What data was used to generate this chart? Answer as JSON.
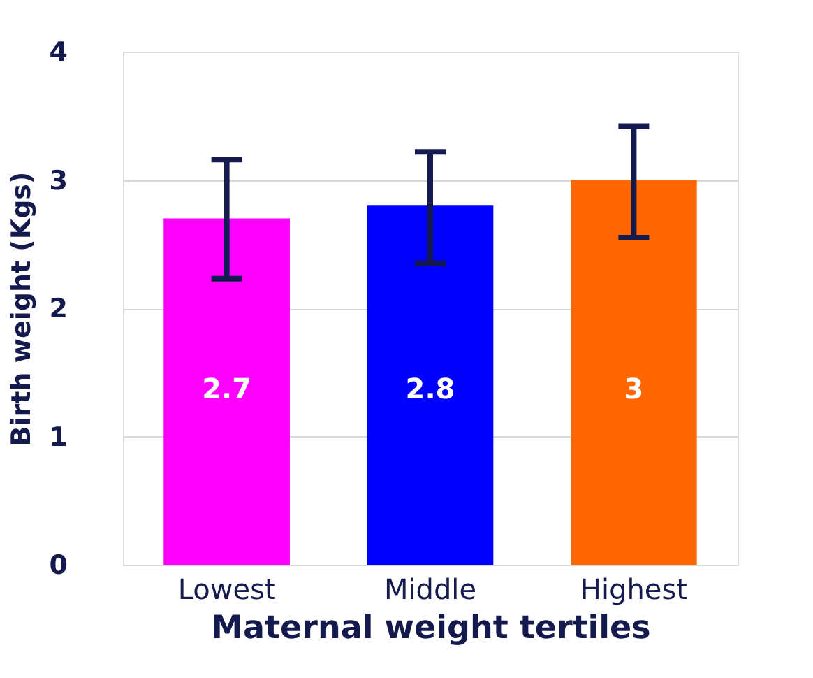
{
  "chart_data": {
    "type": "bar",
    "xlabel": "Maternal weight tertiles",
    "ylabel": "Birth weight (Kgs)",
    "categories": [
      "Lowest",
      "Middle",
      "Highest"
    ],
    "values": [
      2.7,
      2.8,
      3
    ],
    "colors": [
      "#ff00ff",
      "#0000ff",
      "#ff6600"
    ],
    "errors": [
      [
        2.23,
        3.16
      ],
      [
        2.35,
        3.22
      ],
      [
        2.55,
        3.42
      ]
    ],
    "data_labels": true,
    "ylim": [
      0,
      4
    ],
    "yticks": [
      0,
      1,
      2,
      3,
      4
    ],
    "grid": "y"
  }
}
